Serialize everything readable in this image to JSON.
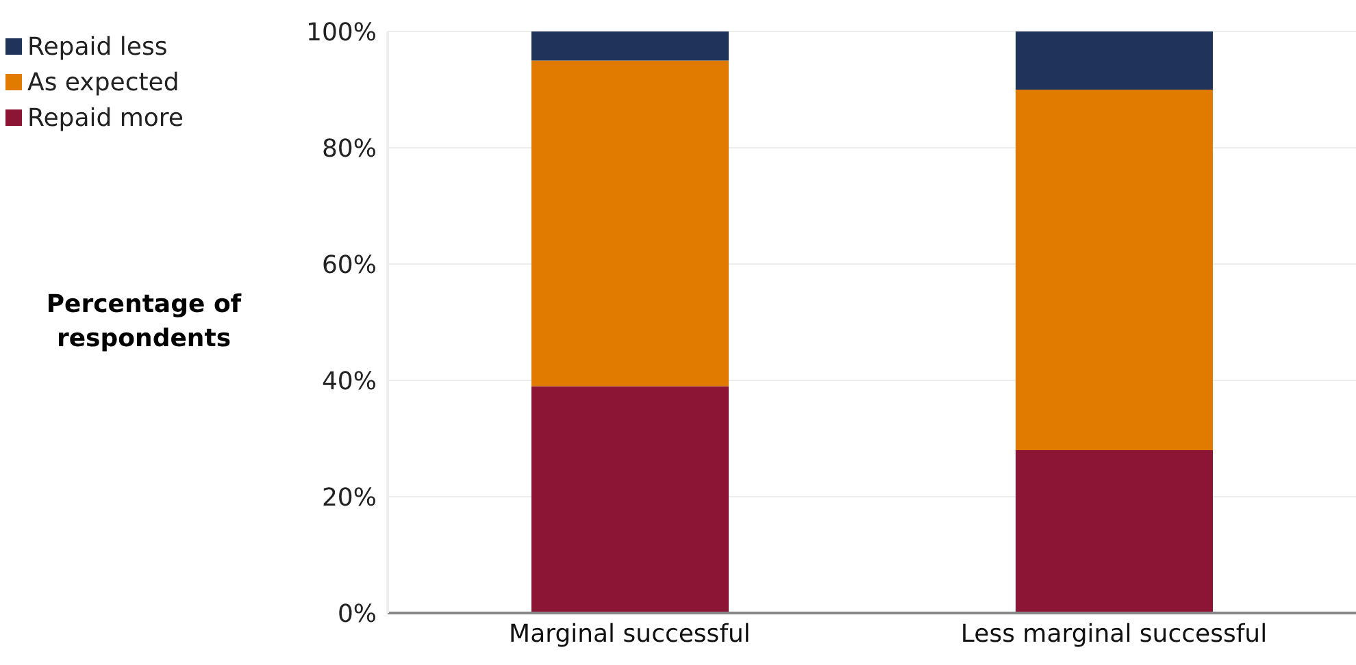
{
  "chart_data": {
    "type": "bar",
    "stacked": true,
    "ylabel": "Percentage of respondents",
    "categories": [
      "Marginal successful",
      "Less marginal successful"
    ],
    "series": [
      {
        "name": "Repaid more",
        "color": "#8c1434",
        "values": [
          39,
          28
        ]
      },
      {
        "name": "As expected",
        "color": "#e07b00",
        "values": [
          56,
          62
        ]
      },
      {
        "name": "Repaid less",
        "color": "#20335b",
        "values": [
          5,
          10
        ]
      }
    ],
    "ylim": [
      0,
      100
    ],
    "yticks": [
      {
        "value": 0,
        "label": "0%"
      },
      {
        "value": 20,
        "label": "20%"
      },
      {
        "value": 40,
        "label": "40%"
      },
      {
        "value": 60,
        "label": "60%"
      },
      {
        "value": 80,
        "label": "80%"
      },
      {
        "value": 100,
        "label": "100%"
      }
    ],
    "grid": "y",
    "legend": "top left"
  }
}
